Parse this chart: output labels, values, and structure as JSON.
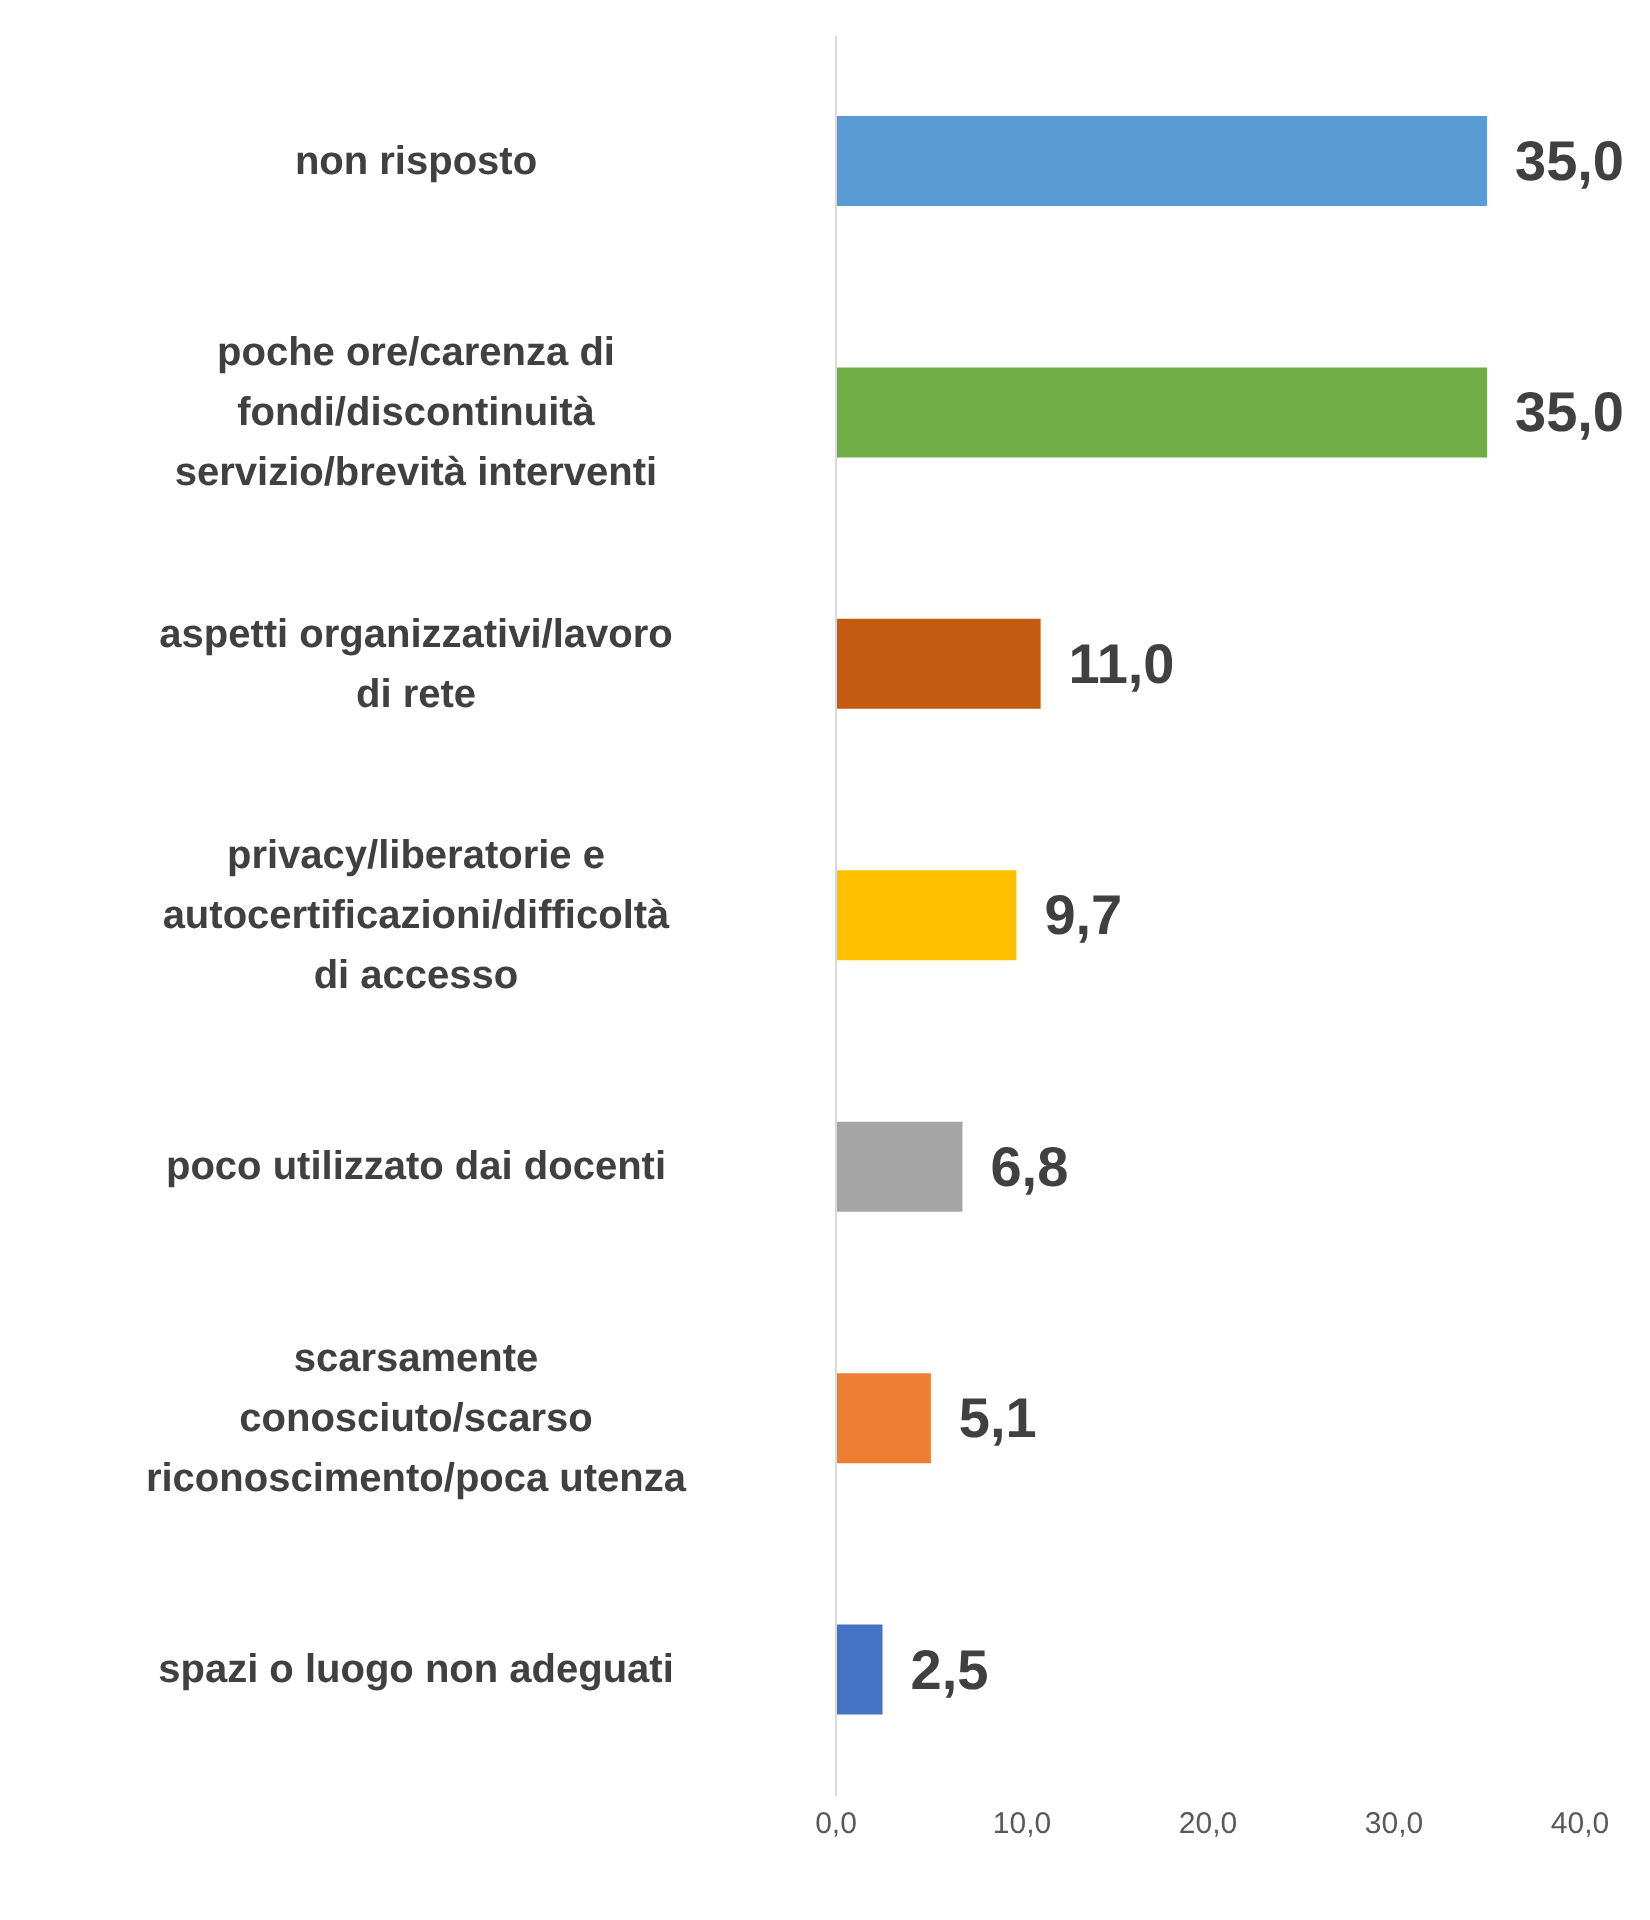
{
  "chart_data": {
    "type": "bar",
    "orientation": "horizontal",
    "categories": [
      "non risposto",
      "poche ore/carenza di fondi/discontinuità servizio/brevità interventi",
      "aspetti organizzativi/lavoro di rete",
      "privacy/liberatorie e autocertificazioni/difficoltà di accesso",
      "poco utilizzato dai docenti",
      "scarsamente conosciuto/scarso riconoscimento/poca utenza",
      "spazi o luogo non adeguati"
    ],
    "values": [
      35.0,
      35.0,
      11.0,
      9.7,
      6.8,
      5.1,
      2.5
    ],
    "colors": [
      "#5b9bd5",
      "#70ad47",
      "#c55a11",
      "#ffc000",
      "#a5a5a5",
      "#ed7d31",
      "#4472c4"
    ],
    "value_labels": [
      "35,0",
      "35,0",
      "11,0",
      "9,7",
      "6,8",
      "5,1",
      "2,5"
    ],
    "xlim": [
      0,
      40
    ],
    "xticks": [
      {
        "value": 0,
        "label": "0,0"
      },
      {
        "value": 10,
        "label": "10,0"
      },
      {
        "value": 20,
        "label": "20,0"
      },
      {
        "value": 30,
        "label": "30,0"
      },
      {
        "value": 40,
        "label": "40,0"
      }
    ],
    "grid": false,
    "legend": false
  }
}
